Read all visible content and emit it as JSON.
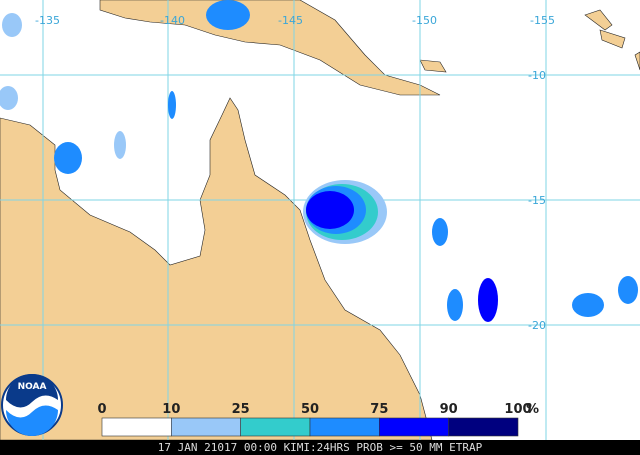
{
  "map": {
    "lon_labels": [
      -135,
      -140,
      -145,
      -150,
      -155
    ],
    "lat_labels": [
      -10,
      -15,
      -20
    ],
    "legend": {
      "ticks": [
        0,
        10,
        25,
        50,
        75,
        90,
        100
      ],
      "unit": "%",
      "colors": [
        "#ffffff",
        "#99c8f8",
        "#33cccc",
        "#1e8cff",
        "#0000ff",
        "#00007f"
      ]
    },
    "footer": "17 JAN 21017 00:00 KIMI:24HRS PROB >= 50 MM ETRAP",
    "logo": "NOAA"
  }
}
